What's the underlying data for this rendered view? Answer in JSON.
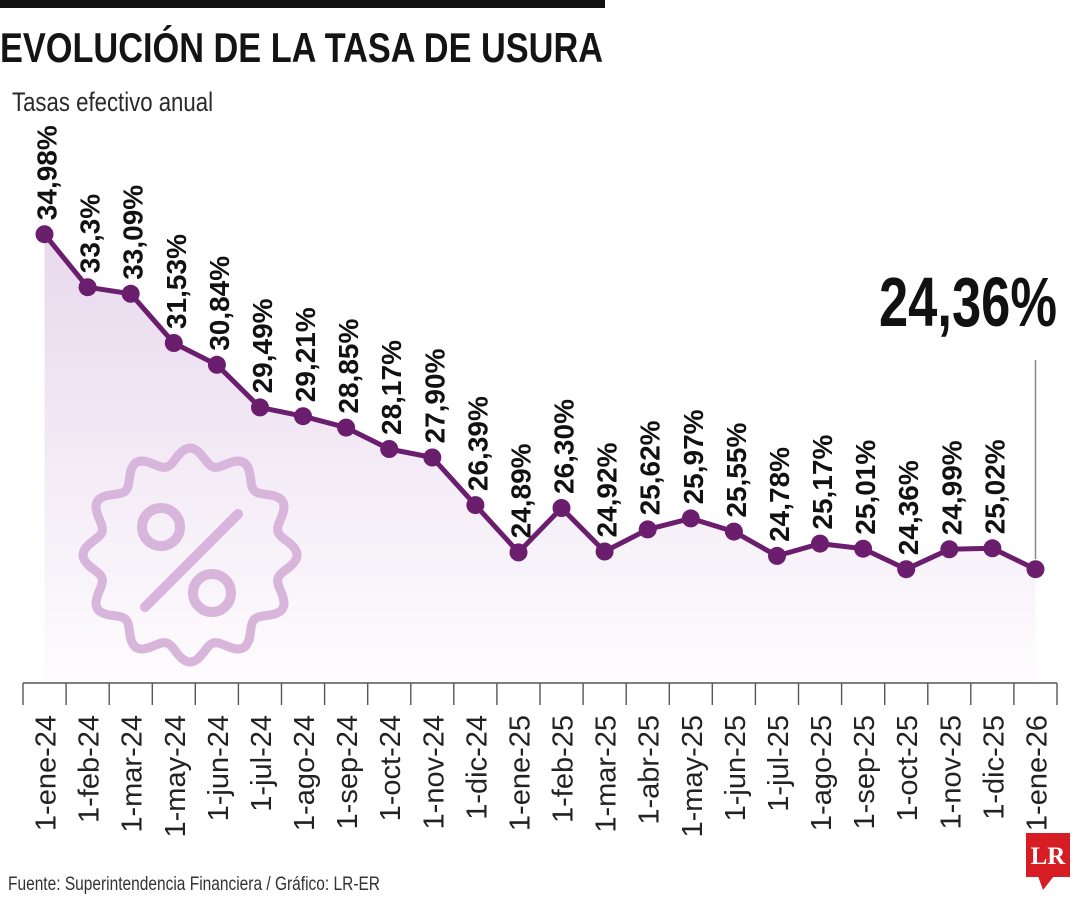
{
  "source": "Fuente: Superintendencia Financiera / Gráfico: LR-ER",
  "logo": {
    "text": "LR",
    "color": "#d71d24",
    "icon": "lr-logo"
  },
  "icons": {
    "badge": "percent-badge-icon"
  },
  "colors": {
    "line": "#6b1e6e",
    "point": "#6b1e6e",
    "area_top": "#e8d9ed",
    "area_bottom": "#fefcfe",
    "badge": "#d8b5da",
    "axis": "#555555",
    "connector": "#8a8a8a",
    "top_rule": "#111111"
  },
  "chart_data": {
    "type": "line",
    "title": "EVOLUCIÓN DE LA TASA DE USURA",
    "subtitle": "Tasas efectivo anual",
    "categories": [
      "1-ene-24",
      "1-feb-24",
      "1-mar-24",
      "1-may-24",
      "1-jun-24",
      "1-jul-24",
      "1-ago-24",
      "1-sep-24",
      "1-oct-24",
      "1-nov-24",
      "1-dic-24",
      "1-ene-25",
      "1-feb-25",
      "1-mar-25",
      "1-abr-25",
      "1-may-25",
      "1-jun-25",
      "1-jul-25",
      "1-ago-25",
      "1-sep-25",
      "1-oct-25",
      "1-nov-25",
      "1-dic-25",
      "1-ene-26"
    ],
    "values": [
      34.98,
      33.3,
      33.09,
      31.53,
      30.84,
      29.49,
      29.21,
      28.85,
      28.17,
      27.9,
      26.39,
      24.89,
      26.3,
      24.92,
      25.62,
      25.97,
      25.55,
      24.78,
      25.17,
      25.01,
      24.36,
      24.99,
      25.02,
      24.36
    ],
    "value_labels": [
      "34,98%",
      "33,3%",
      "33,09%",
      "31,53%",
      "30,84%",
      "29,49%",
      "29,21%",
      "28,85%",
      "28,17%",
      "27,90%",
      "26,39%",
      "24,89%",
      "26,30%",
      "24,92%",
      "25,62%",
      "25,97%",
      "25,55%",
      "24,78%",
      "25,17%",
      "25,01%",
      "24,36%",
      "24,99%",
      "25,02%",
      null
    ],
    "highlight_index": 23,
    "highlight_label": "24,36%",
    "ylim": [
      20.75,
      38
    ],
    "grid": false
  }
}
